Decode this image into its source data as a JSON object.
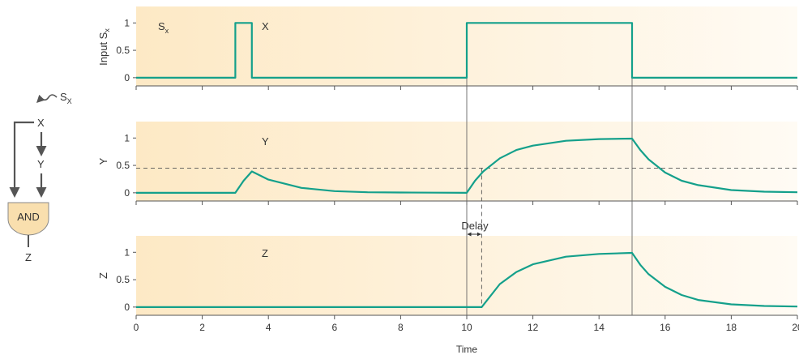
{
  "colors": {
    "panel_left": "#fde9c5",
    "panel_right": "#fffbf4",
    "trace": "#14a08b",
    "axis": "#555555",
    "gate_fill": "#f9dfae",
    "gate_stroke": "#8a8a8a",
    "arrow": "#555555"
  },
  "network": {
    "signal": "S",
    "signal_sub": "X",
    "x": "X",
    "y": "Y",
    "gate": "AND",
    "z": "Z"
  },
  "chart_data": {
    "type": "line",
    "x_axis": {
      "label": "Time",
      "range": [
        0,
        20
      ],
      "ticks": [
        "0",
        "2",
        "4",
        "6",
        "8",
        "10",
        "12",
        "14",
        "16",
        "18",
        "20"
      ]
    },
    "y_ticks": [
      "0",
      "0.5",
      "1"
    ],
    "y_range": [
      -0.15,
      1.3
    ],
    "threshold": 0.45,
    "delay_label": "Delay",
    "delay_interval": [
      10,
      10.45
    ],
    "guide_times": [
      10,
      15
    ],
    "panels": [
      {
        "ylabel": "Input S",
        "ylabel_sub": "x",
        "inline_label": "S",
        "inline_label_sub": "x",
        "inline_label2": "X",
        "x": [
          0,
          3,
          3,
          3.5,
          3.5,
          10,
          10,
          15,
          15,
          20
        ],
        "y": [
          0,
          0,
          1,
          1,
          0,
          0,
          1,
          1,
          0,
          0
        ]
      },
      {
        "ylabel": "Y",
        "inline_label": "Y",
        "x": [
          0,
          3,
          3.25,
          3.5,
          4,
          5,
          6,
          7,
          8,
          9,
          10,
          10.25,
          10.5,
          11,
          11.5,
          12,
          13,
          14,
          15,
          15.25,
          15.5,
          16,
          16.5,
          17,
          18,
          19,
          20
        ],
        "y": [
          0,
          0,
          0.22,
          0.39,
          0.24,
          0.09,
          0.03,
          0.01,
          0.005,
          0.002,
          0,
          0.22,
          0.39,
          0.63,
          0.78,
          0.86,
          0.95,
          0.98,
          0.99,
          0.78,
          0.61,
          0.37,
          0.22,
          0.14,
          0.05,
          0.02,
          0.01
        ]
      },
      {
        "ylabel": "Z",
        "inline_label": "Z",
        "x": [
          0,
          10,
          10.45,
          11,
          11.5,
          12,
          13,
          14,
          15,
          15.25,
          15.5,
          16,
          16.5,
          17,
          18,
          19,
          20
        ],
        "y": [
          0,
          0,
          0,
          0.42,
          0.64,
          0.78,
          0.92,
          0.97,
          0.99,
          0.77,
          0.6,
          0.37,
          0.22,
          0.13,
          0.05,
          0.02,
          0.01
        ]
      }
    ]
  }
}
